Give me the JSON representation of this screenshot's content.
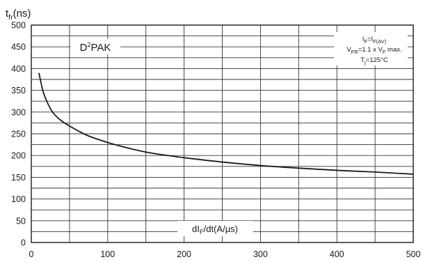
{
  "chart_data": {
    "type": "line",
    "y_axis_label": {
      "base": "t",
      "sub": "fr",
      "unit": "(ns)"
    },
    "x_axis_label": {
      "pre": "dI",
      "sub": "F",
      "post": "/dt(A/µs)"
    },
    "package_label": {
      "base": "D",
      "sup": "2",
      "rest": "PAK"
    },
    "conditions": [
      {
        "parts": [
          {
            "t": "I"
          },
          {
            "t": "F",
            "sub": true
          },
          {
            "t": "=I"
          },
          {
            "t": "F(AV)",
            "sub": true
          }
        ]
      },
      {
        "parts": [
          {
            "t": "V"
          },
          {
            "t": "FR",
            "sub": true
          },
          {
            "t": "=1.1 x V"
          },
          {
            "t": "F",
            "sub": true
          },
          {
            "t": " max."
          }
        ]
      },
      {
        "parts": [
          {
            "t": "T"
          },
          {
            "t": "j",
            "sub": true
          },
          {
            "t": "=125°C"
          }
        ]
      }
    ],
    "xlim": [
      0,
      500
    ],
    "ylim": [
      0,
      500
    ],
    "x_ticks": [
      "0",
      "100",
      "200",
      "300",
      "400",
      "500"
    ],
    "y_ticks": [
      "0",
      "50",
      "100",
      "150",
      "200",
      "250",
      "300",
      "350",
      "400",
      "450",
      "500"
    ],
    "grid": true,
    "series": [
      {
        "color": "#1a1a1a",
        "x": [
          10,
          15,
          20,
          25,
          30,
          40,
          50,
          60,
          75,
          100,
          125,
          150,
          175,
          200,
          250,
          300,
          350,
          400,
          450,
          500
        ],
        "y": [
          390,
          350,
          326,
          308,
          295,
          279,
          268,
          258,
          245,
          230,
          218,
          208,
          201,
          195,
          185,
          177,
          171,
          166,
          162,
          157
        ]
      }
    ]
  }
}
